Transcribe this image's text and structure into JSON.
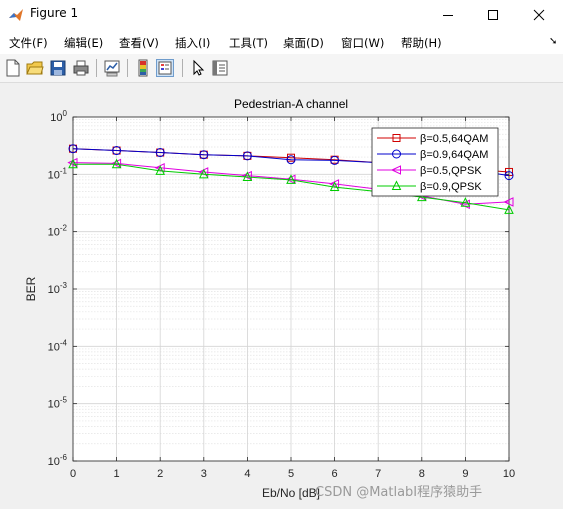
{
  "window": {
    "title": "Figure 1"
  },
  "menu": {
    "items": [
      "文件(F)",
      "编辑(E)",
      "查看(V)",
      "插入(I)",
      "工具(T)",
      "桌面(D)",
      "窗口(W)",
      "帮助(H)"
    ]
  },
  "toolbar": {
    "icons": [
      "new-file-icon",
      "open-folder-icon",
      "save-icon",
      "print-icon",
      "link-plot-icon",
      "colorbar-icon",
      "legend-icon",
      "pointer-icon",
      "property-inspector-icon"
    ]
  },
  "watermark": "CSDN @MatlabI程序猿助手",
  "chart_data": {
    "type": "line",
    "title": "Pedestrian-A channel",
    "xlabel": "Eb/No [dB]",
    "ylabel": "BER",
    "xlim": [
      0,
      10
    ],
    "ylim": [
      1e-06,
      1
    ],
    "yscale": "log",
    "grid": true,
    "minor_grid": true,
    "legend_position": "top-right",
    "xticks": [
      "0",
      "1",
      "2",
      "3",
      "4",
      "5",
      "6",
      "7",
      "8",
      "9",
      "10"
    ],
    "yticks": [
      {
        "base": "10",
        "exp": "0",
        "value": 1
      },
      {
        "base": "10",
        "exp": "-1",
        "value": 0.1
      },
      {
        "base": "10",
        "exp": "-2",
        "value": 0.01
      },
      {
        "base": "10",
        "exp": "-3",
        "value": 0.001
      },
      {
        "base": "10",
        "exp": "-4",
        "value": 0.0001
      },
      {
        "base": "10",
        "exp": "-5",
        "value": 1e-05
      },
      {
        "base": "10",
        "exp": "-6",
        "value": 1e-06
      }
    ],
    "x": [
      0,
      1,
      2,
      3,
      4,
      5,
      6,
      7,
      8,
      9,
      10
    ],
    "series": [
      {
        "name": "β=0.5,64QAM",
        "color": "#d00000",
        "marker": "square",
        "values": [
          0.28,
          0.26,
          0.24,
          0.22,
          0.21,
          0.195,
          0.18,
          0.16,
          0.14,
          0.125,
          0.11
        ]
      },
      {
        "name": "β=0.9,64QAM",
        "color": "#0000cc",
        "marker": "circle",
        "values": [
          0.28,
          0.26,
          0.24,
          0.22,
          0.21,
          0.18,
          0.175,
          0.16,
          0.14,
          0.125,
          0.095
        ]
      },
      {
        "name": "β=0.5,QPSK",
        "color": "#e000e0",
        "marker": "triangle-left",
        "values": [
          0.16,
          0.155,
          0.13,
          0.11,
          0.095,
          0.082,
          0.068,
          0.055,
          0.042,
          0.03,
          0.033
        ]
      },
      {
        "name": "β=0.9,QPSK",
        "color": "#00cc00",
        "marker": "triangle-up",
        "values": [
          0.15,
          0.15,
          0.115,
          0.1,
          0.09,
          0.08,
          0.06,
          0.05,
          0.04,
          0.032,
          0.024
        ]
      }
    ]
  }
}
